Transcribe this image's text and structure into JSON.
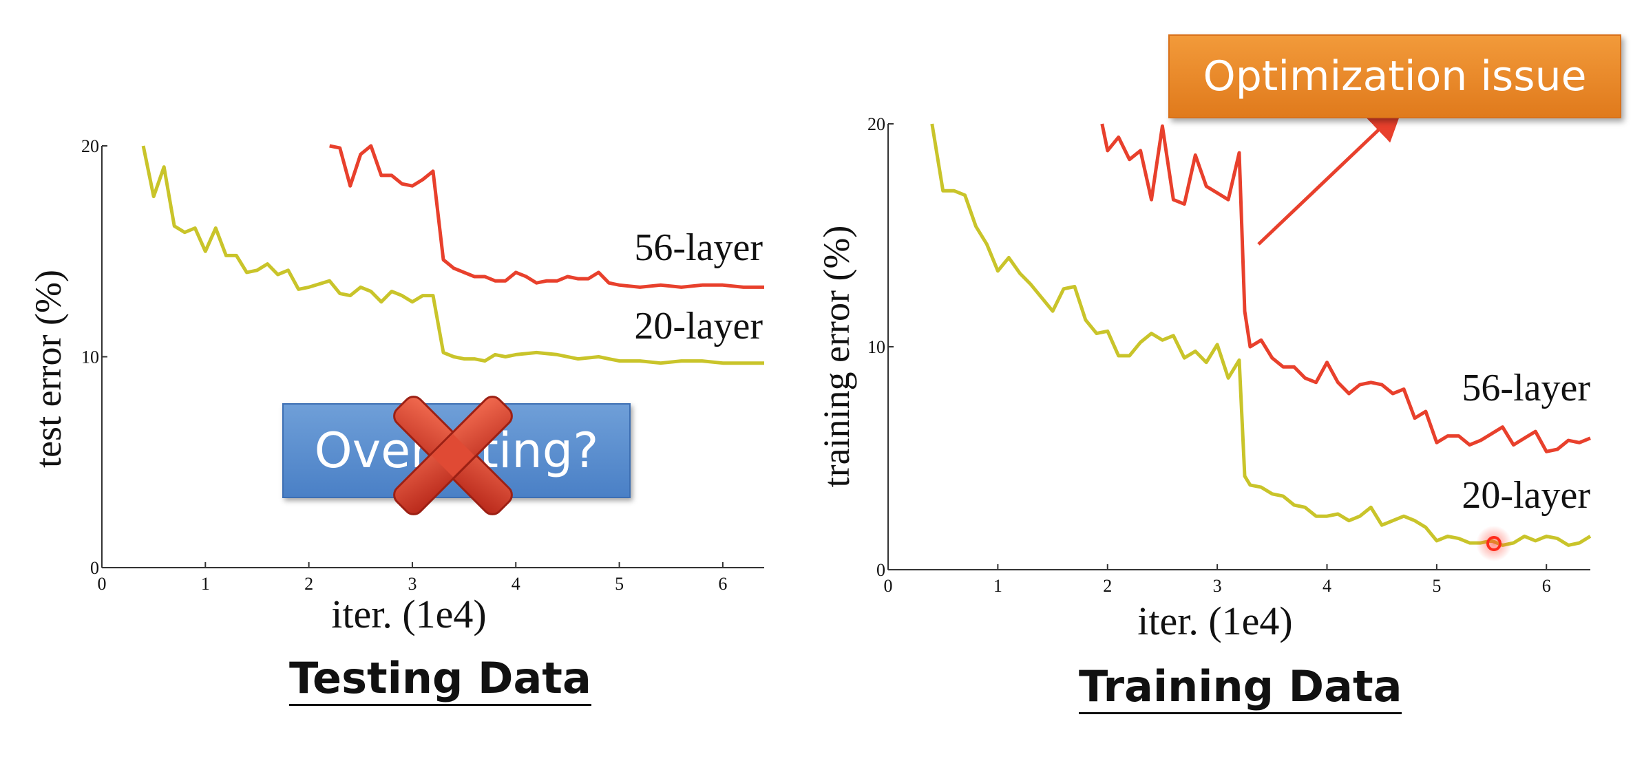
{
  "slide": {
    "left_caption": "Testing Data",
    "right_caption": "Training Data",
    "blue_callout": "Overfitting?",
    "orange_callout": "Optimization issue",
    "cross_icon": "red-x-cross-icon",
    "colors": {
      "line_56": "#e8402c",
      "line_20": "#c9c42a",
      "orange_callout": "#ec8a2c",
      "blue_callout": "#5a8fd0",
      "cross": "#d83a26"
    }
  },
  "chart_data": [
    {
      "type": "line",
      "title": "",
      "xlabel": "iter. (1e4)",
      "ylabel": "test error (%)",
      "xlim": [
        0,
        6.4
      ],
      "ylim": [
        0,
        20
      ],
      "xticks": [
        0,
        1,
        2,
        3,
        4,
        5,
        6
      ],
      "yticks": [
        0,
        10,
        20
      ],
      "series": [
        {
          "name": "56-layer",
          "x": [
            2.2,
            2.3,
            2.4,
            2.5,
            2.6,
            2.7,
            2.8,
            2.9,
            3.0,
            3.1,
            3.2,
            3.3,
            3.4,
            3.5,
            3.6,
            3.7,
            3.8,
            3.9,
            4.0,
            4.1,
            4.2,
            4.3,
            4.4,
            4.5,
            4.6,
            4.7,
            4.8,
            4.9,
            5.0,
            5.2,
            5.4,
            5.6,
            5.8,
            6.0,
            6.2,
            6.4
          ],
          "y": [
            20.0,
            19.9,
            18.1,
            19.6,
            20.0,
            18.6,
            18.6,
            18.2,
            18.1,
            18.4,
            18.8,
            14.6,
            14.2,
            14.0,
            13.8,
            13.8,
            13.6,
            13.6,
            14.0,
            13.8,
            13.5,
            13.6,
            13.6,
            13.8,
            13.7,
            13.7,
            14.0,
            13.5,
            13.4,
            13.3,
            13.4,
            13.3,
            13.4,
            13.4,
            13.3,
            13.3
          ]
        },
        {
          "name": "20-layer",
          "x": [
            0.4,
            0.5,
            0.6,
            0.7,
            0.8,
            0.9,
            1.0,
            1.1,
            1.2,
            1.3,
            1.4,
            1.5,
            1.6,
            1.7,
            1.8,
            1.9,
            2.0,
            2.2,
            2.3,
            2.4,
            2.5,
            2.6,
            2.7,
            2.8,
            2.9,
            3.0,
            3.1,
            3.2,
            3.3,
            3.4,
            3.5,
            3.6,
            3.7,
            3.8,
            3.9,
            4.0,
            4.2,
            4.4,
            4.6,
            4.8,
            5.0,
            5.2,
            5.4,
            5.6,
            5.8,
            6.0,
            6.2,
            6.4
          ],
          "y": [
            20.0,
            17.6,
            19.0,
            16.2,
            15.9,
            16.1,
            15.0,
            16.1,
            14.8,
            14.8,
            14.0,
            14.1,
            14.4,
            13.9,
            14.1,
            13.2,
            13.3,
            13.6,
            13.0,
            12.9,
            13.3,
            13.1,
            12.6,
            13.1,
            12.9,
            12.6,
            12.9,
            12.9,
            10.2,
            10.0,
            9.9,
            9.9,
            9.8,
            10.1,
            10.0,
            10.1,
            10.2,
            10.1,
            9.9,
            10.0,
            9.8,
            9.8,
            9.7,
            9.8,
            9.8,
            9.7,
            9.7,
            9.7
          ]
        }
      ]
    },
    {
      "type": "line",
      "title": "",
      "xlabel": "iter. (1e4)",
      "ylabel": "training error (%)",
      "xlim": [
        0,
        6.4
      ],
      "ylim": [
        0,
        20
      ],
      "xticks": [
        0,
        1,
        2,
        3,
        4,
        5,
        6
      ],
      "yticks": [
        0,
        10,
        20
      ],
      "series": [
        {
          "name": "56-layer",
          "x": [
            1.95,
            2.0,
            2.1,
            2.2,
            2.3,
            2.4,
            2.5,
            2.6,
            2.7,
            2.8,
            2.9,
            3.0,
            3.1,
            3.2,
            3.25,
            3.3,
            3.4,
            3.5,
            3.6,
            3.7,
            3.8,
            3.9,
            4.0,
            4.1,
            4.2,
            4.3,
            4.4,
            4.5,
            4.6,
            4.7,
            4.8,
            4.9,
            5.0,
            5.1,
            5.2,
            5.3,
            5.4,
            5.5,
            5.6,
            5.7,
            5.8,
            5.9,
            6.0,
            6.1,
            6.2,
            6.3,
            6.4
          ],
          "y": [
            20.0,
            18.8,
            19.4,
            18.4,
            18.8,
            16.6,
            19.9,
            16.6,
            16.4,
            18.6,
            17.2,
            16.9,
            16.6,
            18.7,
            11.6,
            10.0,
            10.3,
            9.5,
            9.1,
            9.1,
            8.6,
            8.4,
            9.3,
            8.4,
            7.9,
            8.3,
            8.4,
            8.3,
            7.9,
            8.1,
            6.8,
            7.1,
            5.7,
            6.0,
            6.0,
            5.6,
            5.8,
            6.1,
            6.4,
            5.6,
            5.9,
            6.2,
            5.3,
            5.4,
            5.8,
            5.7,
            5.9
          ]
        },
        {
          "name": "20-layer",
          "x": [
            0.4,
            0.5,
            0.6,
            0.7,
            0.8,
            0.9,
            1.0,
            1.1,
            1.2,
            1.3,
            1.4,
            1.5,
            1.6,
            1.7,
            1.8,
            1.9,
            2.0,
            2.1,
            2.2,
            2.3,
            2.4,
            2.5,
            2.6,
            2.7,
            2.8,
            2.9,
            3.0,
            3.1,
            3.2,
            3.25,
            3.3,
            3.4,
            3.5,
            3.6,
            3.7,
            3.8,
            3.9,
            4.0,
            4.1,
            4.2,
            4.3,
            4.4,
            4.5,
            4.6,
            4.7,
            4.8,
            4.9,
            5.0,
            5.1,
            5.2,
            5.3,
            5.4,
            5.5,
            5.6,
            5.7,
            5.8,
            5.9,
            6.0,
            6.1,
            6.2,
            6.3,
            6.4
          ],
          "y": [
            20.0,
            17.0,
            17.0,
            16.8,
            15.4,
            14.6,
            13.4,
            14.0,
            13.3,
            12.8,
            12.2,
            11.6,
            12.6,
            12.7,
            11.2,
            10.6,
            10.7,
            9.6,
            9.6,
            10.2,
            10.6,
            10.3,
            10.5,
            9.5,
            9.8,
            9.3,
            10.1,
            8.6,
            9.4,
            4.2,
            3.8,
            3.7,
            3.4,
            3.3,
            2.9,
            2.8,
            2.4,
            2.4,
            2.5,
            2.2,
            2.4,
            2.8,
            2.0,
            2.2,
            2.4,
            2.2,
            1.9,
            1.3,
            1.5,
            1.4,
            1.2,
            1.2,
            1.3,
            1.1,
            1.2,
            1.5,
            1.3,
            1.5,
            1.4,
            1.1,
            1.2,
            1.5
          ]
        }
      ]
    }
  ]
}
